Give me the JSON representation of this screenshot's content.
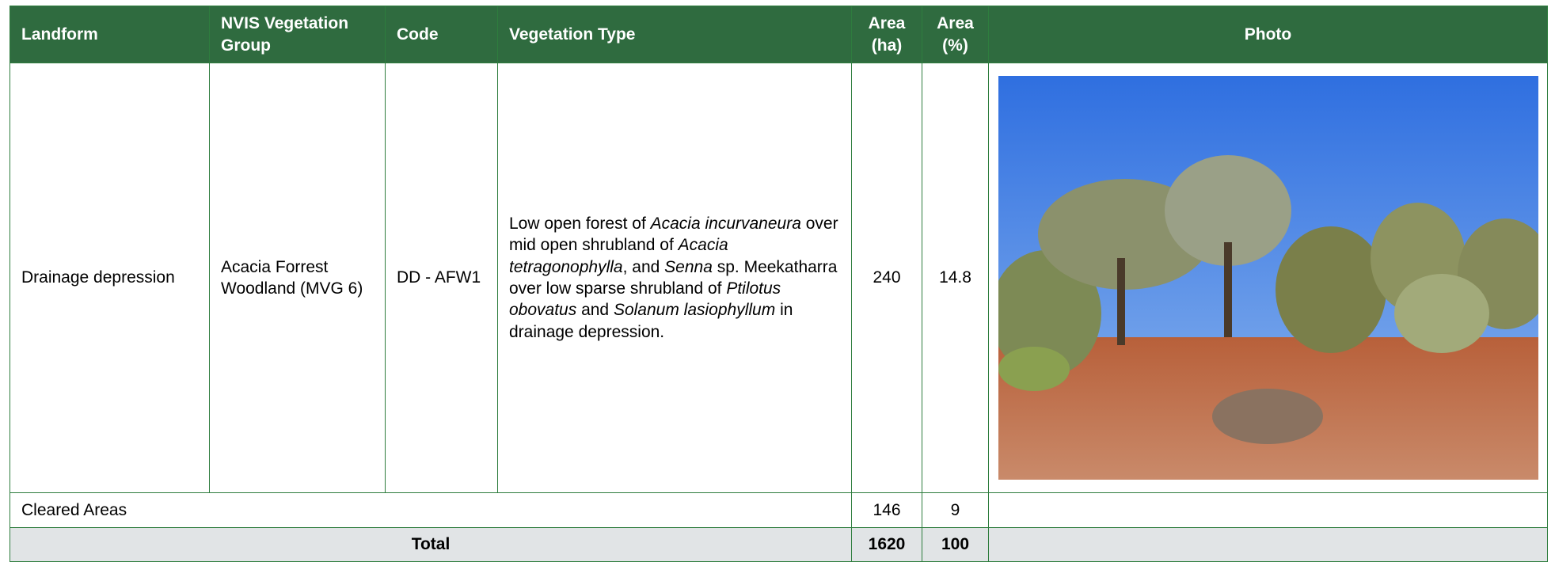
{
  "table": {
    "header": [
      "Landform",
      "NVIS Vegetation Group",
      "Code",
      "Vegetation Type",
      "Area (ha)",
      "Area (%)",
      "Photo"
    ],
    "rows": [
      {
        "landform": "Drainage depression",
        "group": "Acacia Forrest Woodland (MVG 6)",
        "code": "DD - AFW1",
        "vegetation_type": [
          "Low open forest of ",
          "Acacia incurvaneura",
          " over mid open shrubland of ",
          "Acacia tetragonophylla",
          ", and ",
          "Senna",
          " sp. Meekatharra over low sparse shrubland of ",
          "Ptilotus obovatus",
          " and ",
          "Solanum lasiophyllum",
          " in drainage depression."
        ],
        "area_ha": 240,
        "area_pct": 14.8
      },
      {
        "landform": "Cleared Areas",
        "area_ha": 146,
        "area_pct": 9
      }
    ],
    "total": {
      "label": "Total",
      "area_ha": 1620,
      "area_pct": 100
    }
  }
}
